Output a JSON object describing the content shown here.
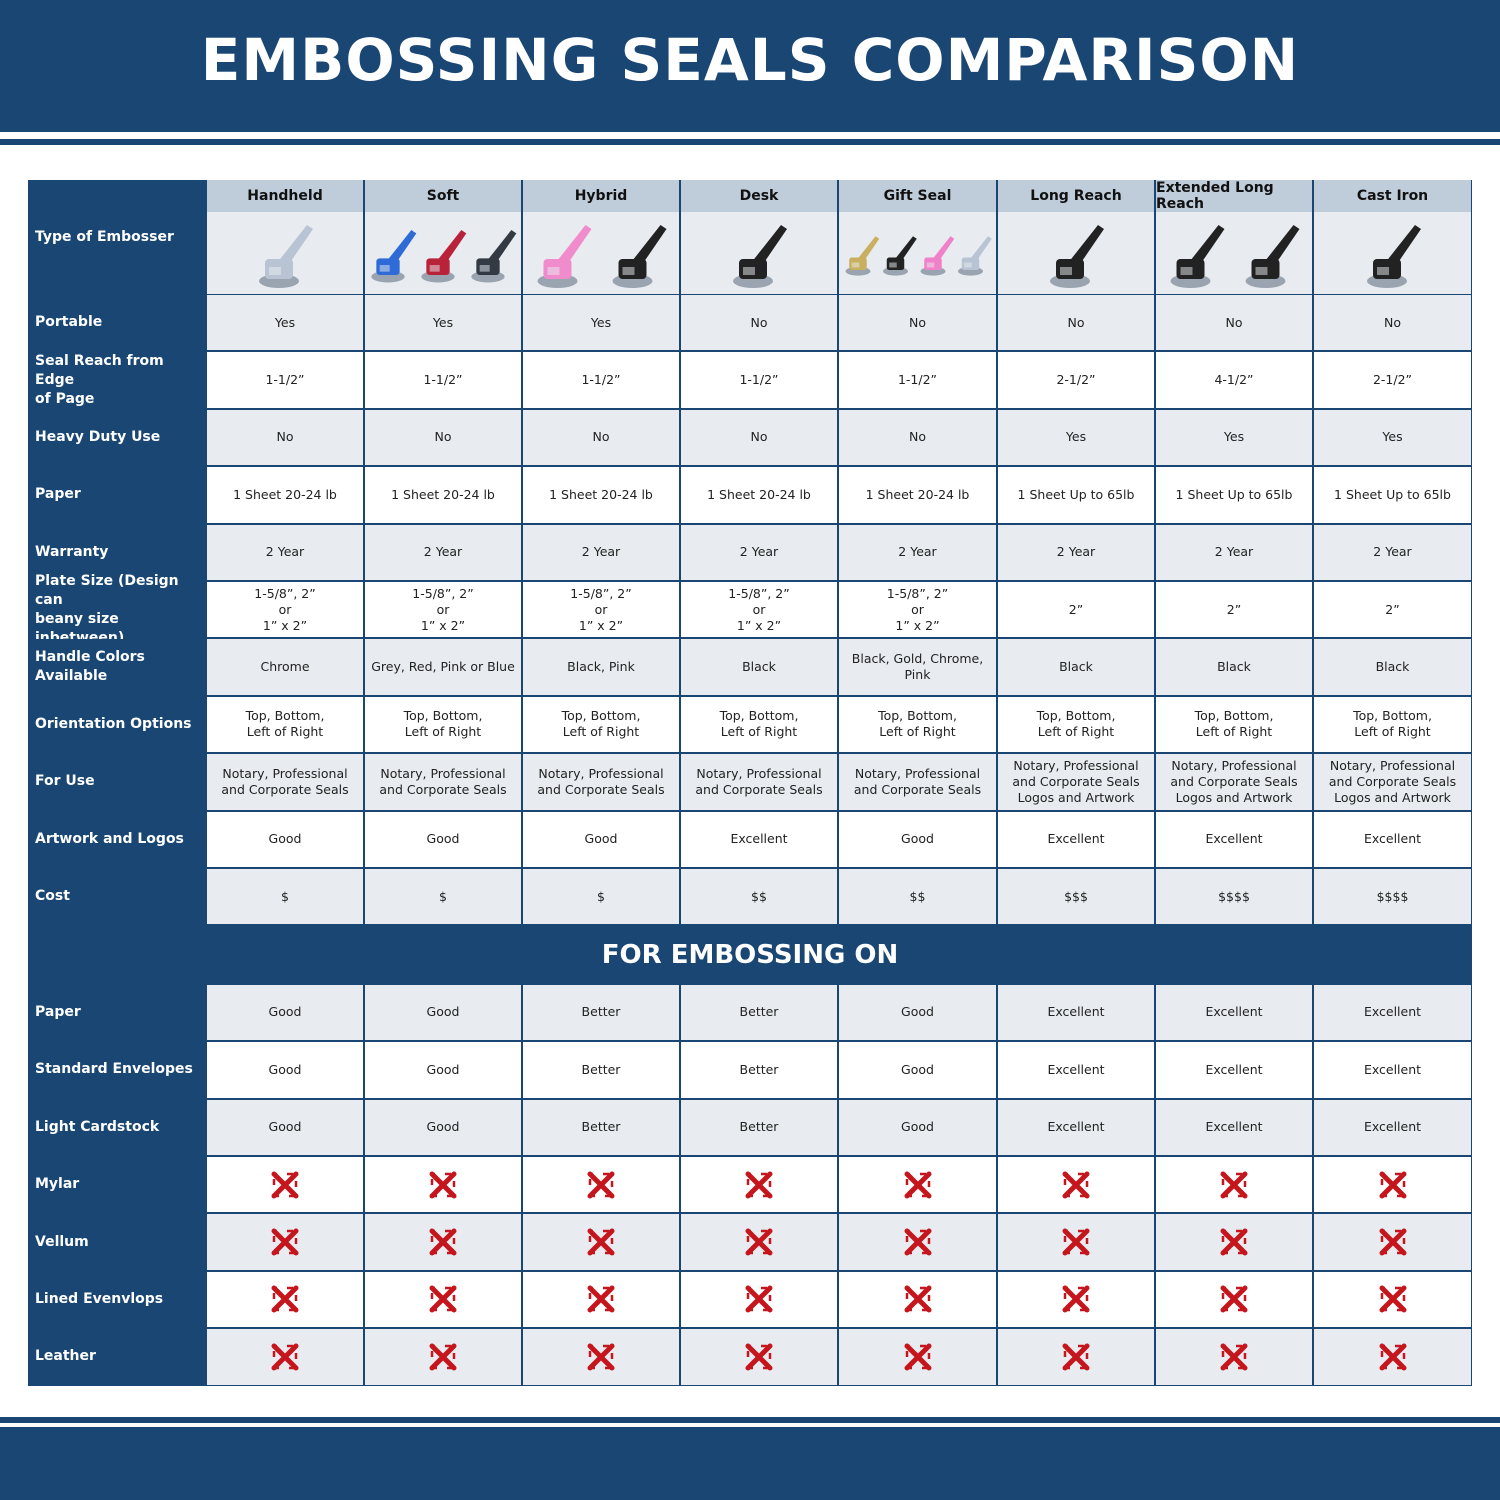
{
  "title": "EMBOSSING SEALS COMPARISON",
  "colors": {
    "navy": "#1a4674",
    "header_gray": "#bfccd9",
    "row_gray": "#e8ecf0",
    "x_red": "#c4161c"
  },
  "corner_label": "Type of Embosser",
  "columns": [
    {
      "name": "Handheld",
      "image": "chrome handheld embosser"
    },
    {
      "name": "Soft",
      "image": "blue, red and black soft embossers"
    },
    {
      "name": "Hybrid",
      "image": "pink and black hybrid embossers"
    },
    {
      "name": "Desk",
      "image": "black desk embosser"
    },
    {
      "name": "Gift Seal",
      "image": "gold, black, pink and chrome gift seals"
    },
    {
      "name": "Long Reach",
      "image": "black long reach embosser"
    },
    {
      "name": "Extended Long Reach",
      "image": "two black extended long reach embossers"
    },
    {
      "name": "Cast Iron",
      "image": "black cast iron embosser"
    }
  ],
  "rows": [
    {
      "label": "Portable",
      "values": [
        "Yes",
        "Yes",
        "Yes",
        "No",
        "No",
        "No",
        "No",
        "No"
      ]
    },
    {
      "label": "Seal Reach from Edge\nof Page",
      "values": [
        "1-1/2”",
        "1-1/2”",
        "1-1/2”",
        "1-1/2”",
        "1-1/2”",
        "2-1/2”",
        "4-1/2”",
        "2-1/2”"
      ]
    },
    {
      "label": "Heavy Duty Use",
      "values": [
        "No",
        "No",
        "No",
        "No",
        "No",
        "Yes",
        "Yes",
        "Yes"
      ]
    },
    {
      "label": "Paper",
      "values": [
        "1 Sheet 20-24 lb",
        "1 Sheet 20-24 lb",
        "1 Sheet 20-24 lb",
        "1 Sheet 20-24 lb",
        "1 Sheet 20-24 lb",
        "1 Sheet Up to 65lb",
        "1 Sheet Up to 65lb",
        "1 Sheet Up to 65lb"
      ]
    },
    {
      "label": "Warranty",
      "values": [
        "2 Year",
        "2 Year",
        "2 Year",
        "2 Year",
        "2 Year",
        "2 Year",
        "2 Year",
        "2 Year"
      ]
    },
    {
      "label": "Plate Size (Design can\nbeany size inbetween)",
      "values": [
        "1-5/8”, 2”\nor\n1” x 2”",
        "1-5/8”, 2”\nor\n1” x 2”",
        "1-5/8”, 2”\nor\n1” x 2”",
        "1-5/8”, 2”\nor\n1” x 2”",
        "1-5/8”, 2”\nor\n1” x 2”",
        "2”",
        "2”",
        "2”"
      ]
    },
    {
      "label": "Handle Colors Available",
      "values": [
        "Chrome",
        "Grey, Red, Pink or Blue",
        "Black, Pink",
        "Black",
        "Black, Gold, Chrome, Pink",
        "Black",
        "Black",
        "Black"
      ]
    },
    {
      "label": "Orientation Options",
      "values": [
        "Top, Bottom,\nLeft of Right",
        "Top, Bottom,\nLeft of Right",
        "Top, Bottom,\nLeft of Right",
        "Top, Bottom,\nLeft of Right",
        "Top, Bottom,\nLeft of Right",
        "Top, Bottom,\nLeft of Right",
        "Top, Bottom,\nLeft of Right",
        "Top, Bottom,\nLeft of Right"
      ]
    },
    {
      "label": "For Use",
      "values": [
        "Notary, Professional\nand Corporate Seals",
        "Notary, Professional\nand Corporate Seals",
        "Notary, Professional\nand Corporate Seals",
        "Notary, Professional\nand Corporate Seals",
        "Notary, Professional\nand Corporate Seals",
        "Notary, Professional\nand Corporate Seals\nLogos and Artwork",
        "Notary, Professional\nand Corporate Seals\nLogos and Artwork",
        "Notary, Professional\nand Corporate Seals\nLogos and Artwork"
      ]
    },
    {
      "label": "Artwork and Logos",
      "values": [
        "Good",
        "Good",
        "Good",
        "Excellent",
        "Good",
        "Excellent",
        "Excellent",
        "Excellent"
      ]
    },
    {
      "label": "Cost",
      "values": [
        "$",
        "$",
        "$",
        "$$",
        "$$",
        "$$$",
        "$$$$",
        "$$$$"
      ]
    }
  ],
  "section_title": "FOR EMBOSSING ON",
  "section_rows": [
    {
      "label": "Paper",
      "values": [
        "Good",
        "Good",
        "Better",
        "Better",
        "Good",
        "Excellent",
        "Excellent",
        "Excellent"
      ]
    },
    {
      "label": "Standard Envelopes",
      "values": [
        "Good",
        "Good",
        "Better",
        "Better",
        "Good",
        "Excellent",
        "Excellent",
        "Excellent"
      ]
    },
    {
      "label": "Light Cardstock",
      "values": [
        "Good",
        "Good",
        "Better",
        "Better",
        "Good",
        "Excellent",
        "Excellent",
        "Excellent"
      ]
    },
    {
      "label": "Mylar",
      "values": [
        "x-mark",
        "x-mark",
        "x-mark",
        "x-mark",
        "x-mark",
        "x-mark",
        "x-mark",
        "x-mark"
      ]
    },
    {
      "label": "Vellum",
      "values": [
        "x-mark",
        "x-mark",
        "x-mark",
        "x-mark",
        "x-mark",
        "x-mark",
        "x-mark",
        "x-mark"
      ]
    },
    {
      "label": "Lined Evenvlops",
      "values": [
        "x-mark",
        "x-mark",
        "x-mark",
        "x-mark",
        "x-mark",
        "x-mark",
        "x-mark",
        "x-mark"
      ]
    },
    {
      "label": "Leather",
      "values": [
        "x-mark",
        "x-mark",
        "x-mark",
        "x-mark",
        "x-mark",
        "x-mark",
        "x-mark",
        "x-mark"
      ]
    }
  ]
}
